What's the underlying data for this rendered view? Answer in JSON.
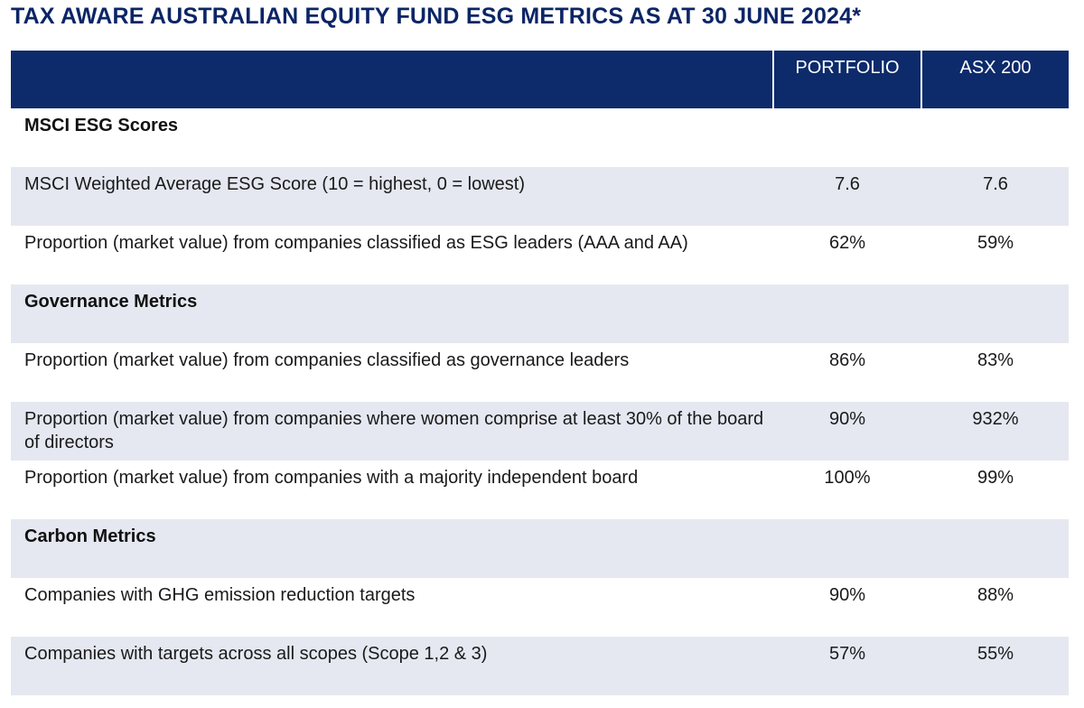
{
  "title": "TAX AWARE AUSTRALIAN EQUITY FUND ESG METRICS AS AT 30 JUNE 2024*",
  "columns": {
    "label": "",
    "portfolio": "PORTFOLIO",
    "benchmark": "ASX 200"
  },
  "rows": [
    {
      "type": "section",
      "label": "MSCI ESG Scores",
      "portfolio": "",
      "benchmark": ""
    },
    {
      "type": "data",
      "label": "MSCI Weighted Average ESG Score (10 = highest, 0 = lowest)",
      "portfolio": "7.6",
      "benchmark": "7.6"
    },
    {
      "type": "data",
      "label": "Proportion (market value) from companies classified as ESG leaders (AAA and AA)",
      "portfolio": "62%",
      "benchmark": "59%"
    },
    {
      "type": "section",
      "label": "Governance Metrics",
      "portfolio": "",
      "benchmark": ""
    },
    {
      "type": "data",
      "label": "Proportion (market value) from companies classified as governance leaders",
      "portfolio": "86%",
      "benchmark": "83%"
    },
    {
      "type": "data",
      "label": "Proportion (market value) from companies where women comprise at least 30% of the board of directors",
      "portfolio": "90%",
      "benchmark": "932%"
    },
    {
      "type": "data",
      "label": "Proportion (market value) from companies with a majority independent board",
      "portfolio": "100%",
      "benchmark": "99%"
    },
    {
      "type": "section",
      "label": "Carbon Metrics",
      "portfolio": "",
      "benchmark": ""
    },
    {
      "type": "data",
      "label": "Companies with GHG emission reduction targets",
      "portfolio": "90%",
      "benchmark": "88%"
    },
    {
      "type": "data",
      "label": "Companies with targets across all scopes (Scope 1,2 & 3)",
      "portfolio": "57%",
      "benchmark": "55%"
    }
  ],
  "colors": {
    "title": "#0b2566",
    "header_bg": "#0d2a6b",
    "row_alt_bg": "#e5e8f1",
    "row_bg": "#ffffff"
  }
}
